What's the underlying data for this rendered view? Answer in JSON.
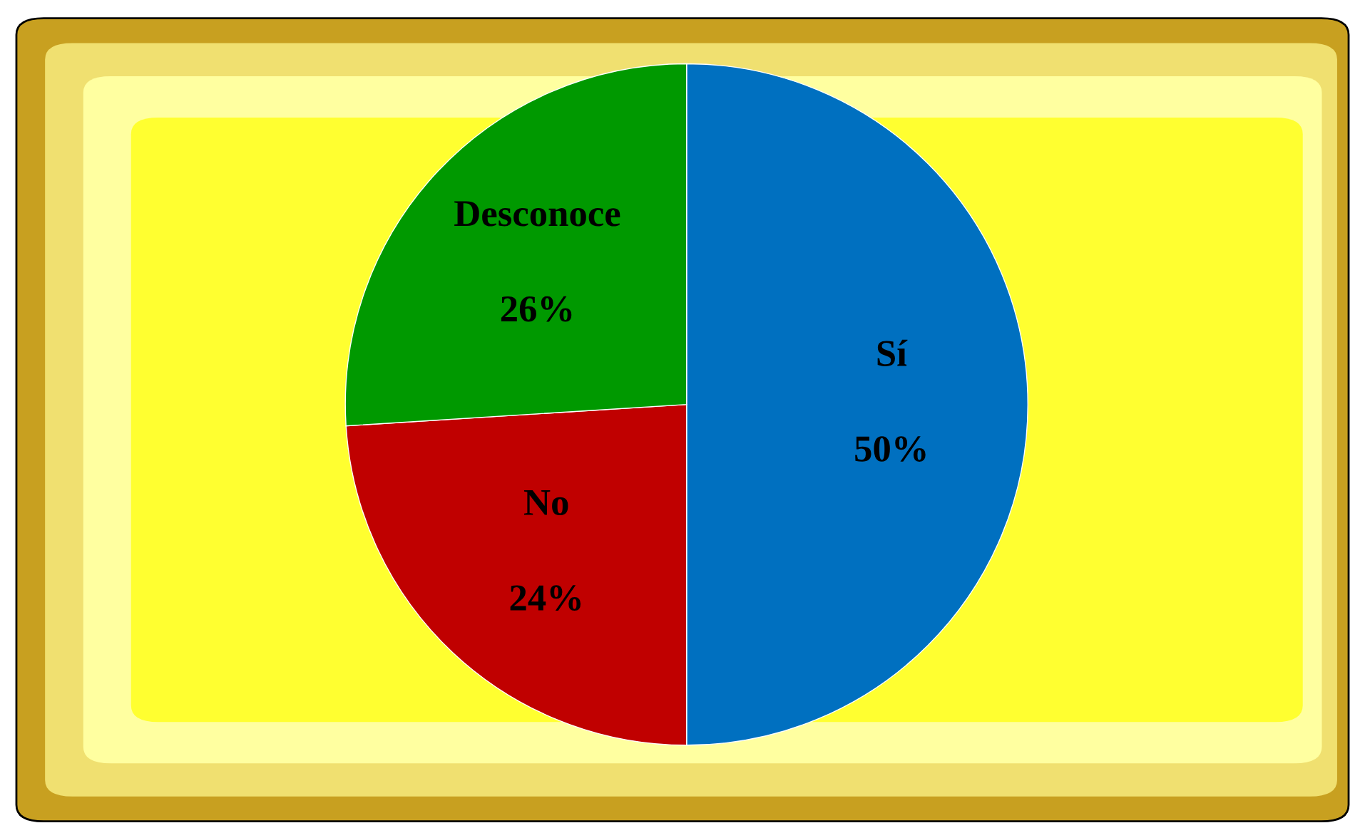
{
  "chart_data": {
    "type": "pie",
    "categories": [
      "Sí",
      "No",
      "Desconoce"
    ],
    "values": [
      50,
      24,
      26
    ],
    "colors": [
      "#0070c0",
      "#c00000",
      "#009900"
    ],
    "value_labels": [
      "50%",
      "24%",
      "26%"
    ]
  }
}
